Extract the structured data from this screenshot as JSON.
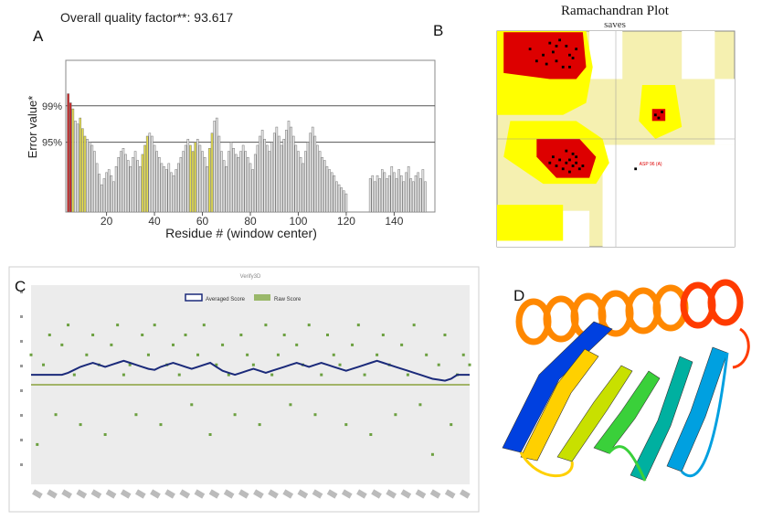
{
  "panels": {
    "a": {
      "letter": "A"
    },
    "b": {
      "letter": "B"
    },
    "c": {
      "letter": "C"
    },
    "d": {
      "letter": "D"
    }
  },
  "chart_data": [
    {
      "panel": "A",
      "type": "bar",
      "title": "Overall quality factor**: 93.617",
      "xlabel": "Residue # (window center)",
      "ylabel": "Error value*",
      "xticks": [
        20,
        40,
        60,
        80,
        100,
        120,
        140
      ],
      "xlim": [
        3,
        157
      ],
      "ylim": [
        0,
        100
      ],
      "reference_lines": [
        {
          "label": "99%",
          "value": 70
        },
        {
          "label": "95%",
          "value": 46
        }
      ],
      "colors": {
        "normal": "#e6e6e6",
        "warn": "#e8e04a",
        "error": "#cc1f1f"
      },
      "x_start": 4,
      "values": [
        78,
        72,
        68,
        60,
        58,
        62,
        55,
        50,
        48,
        46,
        44,
        40,
        32,
        25,
        18,
        22,
        26,
        28,
        24,
        20,
        30,
        36,
        40,
        42,
        38,
        34,
        30,
        36,
        40,
        34,
        30,
        38,
        44,
        50,
        52,
        50,
        44,
        40,
        36,
        32,
        30,
        28,
        32,
        26,
        24,
        28,
        32,
        36,
        40,
        44,
        48,
        44,
        40,
        46,
        48,
        44,
        40,
        36,
        30,
        42,
        52,
        60,
        62,
        50,
        40,
        34,
        30,
        40,
        46,
        42,
        38,
        36,
        40,
        44,
        40,
        36,
        32,
        28,
        38,
        44,
        50,
        54,
        48,
        44,
        40,
        46,
        52,
        56,
        50,
        44,
        48,
        54,
        60,
        56,
        50,
        44,
        40,
        36,
        32,
        40,
        46,
        52,
        56,
        50,
        44,
        40,
        36,
        34,
        30,
        28,
        26,
        24,
        20,
        18,
        16,
        14,
        12,
        0,
        0,
        0,
        0,
        0,
        0,
        0,
        0,
        0,
        22,
        24,
        20,
        24,
        22,
        28,
        26,
        22,
        24,
        30,
        26,
        22,
        28,
        24,
        20,
        26,
        30,
        22,
        20,
        24,
        26,
        22,
        28,
        20
      ],
      "highlight_x": [
        5,
        6,
        9,
        10,
        11,
        35,
        36,
        37,
        55,
        56,
        57,
        63,
        64
      ],
      "error_x": [
        4,
        5
      ]
    },
    {
      "panel": "B",
      "type": "scatter",
      "title": "Ramachandran Plot",
      "subtitle": "saves",
      "region_colors": {
        "core": "#dd0000",
        "allowed": "#ffff00",
        "generous": "#f5f0b0",
        "disallowed": "#ffffff"
      },
      "core_points": [
        [
          -70,
          140
        ],
        [
          -90,
          130
        ],
        [
          -60,
          150
        ],
        [
          -100,
          160
        ],
        [
          -80,
          120
        ],
        [
          -110,
          140
        ],
        [
          -75,
          155
        ],
        [
          -95,
          145
        ],
        [
          -120,
          130
        ],
        [
          -65,
          135
        ],
        [
          -85,
          165
        ],
        [
          -105,
          125
        ],
        [
          -70,
          120
        ],
        [
          -130,
          150
        ],
        [
          -90,
          155
        ],
        [
          -60,
          -40
        ],
        [
          -65,
          -45
        ],
        [
          -70,
          -35
        ],
        [
          -75,
          -40
        ],
        [
          -80,
          -50
        ],
        [
          -55,
          -50
        ],
        [
          -60,
          -30
        ],
        [
          -85,
          -35
        ],
        [
          -90,
          -45
        ],
        [
          -70,
          -55
        ],
        [
          -65,
          -25
        ],
        [
          -100,
          -40
        ],
        [
          -50,
          -45
        ],
        [
          -75,
          -20
        ],
        [
          -95,
          -30
        ],
        [
          60,
          40
        ],
        [
          65,
          35
        ],
        [
          70,
          45
        ]
      ],
      "outlier_labels": [
        "ASP 96 (A)"
      ]
    },
    {
      "panel": "C",
      "type": "line",
      "title": "Verify3D",
      "legend": [
        "Averaged Score",
        "Raw Score"
      ],
      "ylim": [
        -1,
        1
      ],
      "baseline": 0.0,
      "averaged": [
        0.1,
        0.1,
        0.1,
        0.1,
        0.1,
        0.1,
        0.12,
        0.15,
        0.18,
        0.2,
        0.22,
        0.2,
        0.18,
        0.2,
        0.22,
        0.24,
        0.22,
        0.2,
        0.18,
        0.16,
        0.15,
        0.18,
        0.2,
        0.22,
        0.2,
        0.18,
        0.16,
        0.18,
        0.2,
        0.22,
        0.18,
        0.14,
        0.12,
        0.1,
        0.12,
        0.14,
        0.16,
        0.14,
        0.12,
        0.14,
        0.16,
        0.18,
        0.2,
        0.22,
        0.2,
        0.18,
        0.2,
        0.22,
        0.2,
        0.18,
        0.16,
        0.14,
        0.16,
        0.18,
        0.2,
        0.22,
        0.24,
        0.22,
        0.2,
        0.18,
        0.16,
        0.14,
        0.12,
        0.1,
        0.08,
        0.06,
        0.05,
        0.04,
        0.06,
        0.1,
        0.1,
        0.1
      ],
      "raw": [
        0.3,
        -0.6,
        0.2,
        0.5,
        -0.3,
        0.4,
        0.6,
        0.1,
        -0.4,
        0.3,
        0.5,
        0.2,
        -0.5,
        0.4,
        0.6,
        0.1,
        0.2,
        -0.3,
        0.5,
        0.3,
        0.6,
        -0.4,
        0.2,
        0.4,
        0.1,
        0.5,
        -0.2,
        0.3,
        0.6,
        -0.5,
        0.2,
        0.4,
        0.1,
        -0.3,
        0.5,
        0.3,
        0.2,
        -0.4,
        0.6,
        0.1,
        0.3,
        0.5,
        -0.2,
        0.4,
        0.2,
        0.6,
        -0.3,
        0.1,
        0.5,
        0.3,
        0.2,
        -0.4,
        0.4,
        0.6,
        0.1,
        -0.5,
        0.3,
        0.5,
        0.2,
        -0.3,
        0.4,
        0.1,
        0.6,
        -0.2,
        0.3,
        -0.7,
        0.2,
        0.5,
        -0.4,
        0.1,
        0.3,
        0.2
      ]
    }
  ],
  "helix_colors": [
    "#ff3b00",
    "#ff8800",
    "#ffd000",
    "#c8e000",
    "#3ad03a",
    "#00b0a0",
    "#00a0e0",
    "#0040e0"
  ]
}
